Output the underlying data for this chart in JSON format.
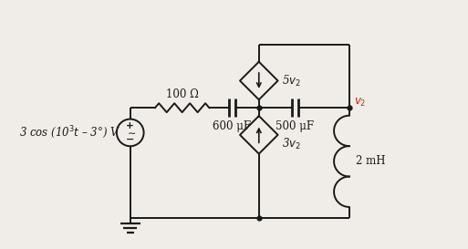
{
  "bg_color": "#f0ede8",
  "line_color": "#1a1a1a",
  "red_color": "#cc2200",
  "source_label": "3 cos (10$^3$$t$ – 3°) V",
  "resistor_label": "100 Ω",
  "cap1_label": "600 μF",
  "cap2_label": "500 μF",
  "inductor_label": "2 mH",
  "dep_cur1_label": "5$v_2$",
  "dep_cur2_label": "3$v_2$",
  "v2_label": "$v_2$",
  "figsize": [
    5.13,
    2.73
  ],
  "dpi": 100
}
